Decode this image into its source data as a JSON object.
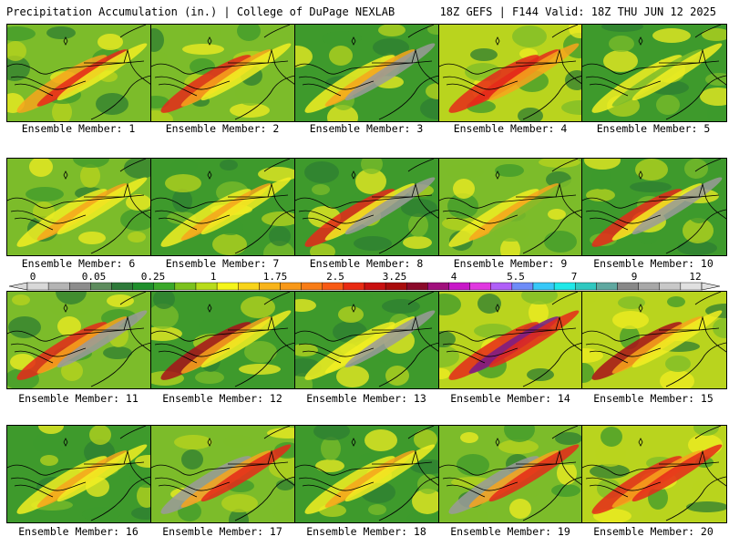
{
  "header": {
    "title": "Precipitation Accumulation (in.) | College of DuPage NEXLAB",
    "model_info": "18Z GEFS | F144 Valid: 18Z THU JUN 12 2025"
  },
  "members": [
    {
      "label": "Ensemble Member: 1",
      "theme": "green-yellow",
      "streaks": [
        "orange",
        "red",
        "yellow"
      ]
    },
    {
      "label": "Ensemble Member: 2",
      "theme": "green-yellow",
      "streaks": [
        "red",
        "orange",
        "yellow"
      ]
    },
    {
      "label": "Ensemble Member: 3",
      "theme": "green",
      "streaks": [
        "yellow",
        "orange",
        "gray"
      ]
    },
    {
      "label": "Ensemble Member: 4",
      "theme": "yellow-orange",
      "streaks": [
        "red",
        "red",
        "orange"
      ]
    },
    {
      "label": "Ensemble Member: 5",
      "theme": "green",
      "streaks": [
        "yellow",
        "green-light",
        "yellow"
      ]
    },
    {
      "label": "Ensemble Member: 6",
      "theme": "green-yellow",
      "streaks": [
        "yellow",
        "orange",
        "yellow"
      ]
    },
    {
      "label": "Ensemble Member: 7",
      "theme": "green",
      "streaks": [
        "yellow",
        "orange",
        "yellow"
      ]
    },
    {
      "label": "Ensemble Member: 8",
      "theme": "green",
      "streaks": [
        "red",
        "yellow",
        "gray"
      ]
    },
    {
      "label": "Ensemble Member: 9",
      "theme": "green-yellow",
      "streaks": [
        "yellow",
        "orange",
        "green-light"
      ]
    },
    {
      "label": "Ensemble Member: 10",
      "theme": "green",
      "streaks": [
        "red",
        "yellow",
        "gray"
      ]
    },
    {
      "label": "Ensemble Member: 11",
      "theme": "green-yellow",
      "streaks": [
        "red",
        "orange",
        "gray"
      ]
    },
    {
      "label": "Ensemble Member: 12",
      "theme": "green",
      "streaks": [
        "darkred",
        "orange",
        "yellow"
      ]
    },
    {
      "label": "Ensemble Member: 13",
      "theme": "green",
      "streaks": [
        "yellow",
        "yellow",
        "gray"
      ]
    },
    {
      "label": "Ensemble Member: 14",
      "theme": "yellow-orange",
      "streaks": [
        "red",
        "purple",
        "red"
      ]
    },
    {
      "label": "Ensemble Member: 15",
      "theme": "yellow-orange",
      "streaks": [
        "darkred",
        "orange",
        "yellow"
      ]
    },
    {
      "label": "Ensemble Member: 16",
      "theme": "green",
      "streaks": [
        "yellow",
        "orange",
        "yellow"
      ]
    },
    {
      "label": "Ensemble Member: 17",
      "theme": "green-yellow",
      "streaks": [
        "gray",
        "orange",
        "red"
      ]
    },
    {
      "label": "Ensemble Member: 18",
      "theme": "green",
      "streaks": [
        "yellow",
        "orange",
        "yellow"
      ]
    },
    {
      "label": "Ensemble Member: 19",
      "theme": "green-yellow",
      "streaks": [
        "gray",
        "orange",
        "red"
      ]
    },
    {
      "label": "Ensemble Member: 20",
      "theme": "yellow-orange",
      "streaks": [
        "red",
        "orange",
        "red"
      ]
    }
  ],
  "colorbar": {
    "labels": [
      "0",
      "0.05",
      "0.25",
      "1",
      "1.75",
      "2.5",
      "3.25",
      "4",
      "5.5",
      "7",
      "9",
      "12"
    ],
    "colors": [
      "#d8d8d8",
      "#b4b4b4",
      "#8c8c8c",
      "#5e8c5e",
      "#2e7a3a",
      "#1f8f2c",
      "#3aa82a",
      "#7cc21e",
      "#b8dc1a",
      "#f5f51a",
      "#f8d41a",
      "#f8b41a",
      "#f89818",
      "#f87c16",
      "#f85a14",
      "#e82a12",
      "#c81010",
      "#a80c0c",
      "#8a0a2a",
      "#a0107c",
      "#c818c8",
      "#e038e0",
      "#b060f8",
      "#6e8cf8",
      "#38c8f8",
      "#20e8e8",
      "#30c8c0",
      "#60a8a0",
      "#888888",
      "#a8a8a8",
      "#c8c8c8",
      "#e0e0e0"
    ]
  },
  "palette": {
    "green-dark": "#2e7d32",
    "green": "#3e9a2c",
    "green-light": "#7cbc2a",
    "yellow-green": "#b9d41e",
    "yellow": "#f2ee22",
    "orange": "#f7a41c",
    "red": "#e5291a",
    "darkred": "#a8101a",
    "purple": "#7a1a8a",
    "gray": "#9a9a9a",
    "border": "#000000"
  }
}
